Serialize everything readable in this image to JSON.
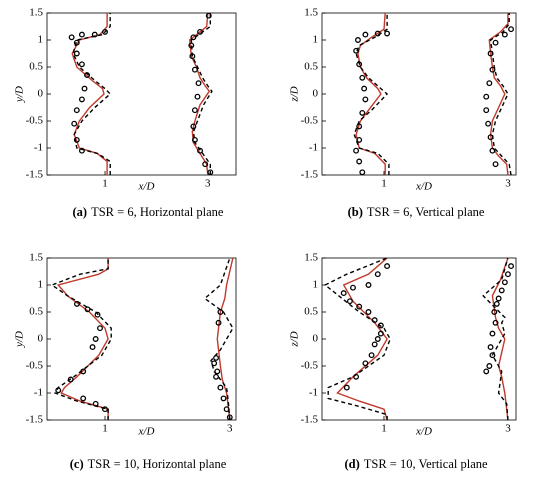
{
  "chart_data": [
    {
      "type": "line",
      "label": "(a)",
      "caption": "TSR = 6, Horizontal plane",
      "xlabel": "x/D",
      "ylabel": "y/D",
      "xlim": [
        -0.13,
        3.55
      ],
      "ylim": [
        -1.5,
        1.5
      ],
      "xticks": [
        1,
        3
      ],
      "yticks": [
        -1.5,
        -1,
        -0.5,
        0,
        0.5,
        1,
        1.5
      ],
      "series": [
        {
          "style": "solid",
          "color": "#c0392b",
          "x": [
            1.04,
            1.04,
            0.85,
            0.5,
            0.4,
            0.5,
            0.7,
            0.98,
            0.95,
            0.75,
            0.45,
            0.36,
            0.5,
            0.9,
            1.04,
            1.04
          ],
          "values": [
            -1.5,
            -1.25,
            -1.1,
            -1,
            -0.75,
            -0.5,
            -0.25,
            0,
            0.1,
            0.25,
            0.5,
            0.75,
            1,
            1.1,
            1.25,
            1.5
          ]
        },
        {
          "style": "dashed",
          "color": "#000000",
          "x": [
            1.1,
            1.1,
            0.85,
            0.45,
            0.4,
            0.55,
            0.8,
            1.1,
            1.0,
            0.8,
            0.5,
            0.38,
            0.45,
            0.95,
            1.1,
            1.1
          ],
          "values": [
            -1.5,
            -1.25,
            -1.1,
            -1,
            -0.75,
            -0.5,
            -0.25,
            0,
            0.1,
            0.25,
            0.5,
            0.75,
            1,
            1.1,
            1.25,
            1.5
          ]
        },
        {
          "style": "markers",
          "color": "#000000",
          "x": [
            0.55,
            0.45,
            0.4,
            0.45,
            0.55,
            0.6,
            0.65,
            0.55,
            0.45,
            0.45,
            0.35,
            0.55,
            0.8,
            1.0
          ],
          "values": [
            -1.05,
            -0.85,
            -0.55,
            -0.3,
            -0.1,
            0.1,
            0.35,
            0.55,
            0.75,
            0.95,
            1.05,
            1.1,
            1.1,
            1.15
          ]
        },
        {
          "style": "solid",
          "color": "#c0392b",
          "x": [
            3.0,
            2.98,
            2.85,
            2.72,
            2.7,
            2.75,
            2.85,
            3.03,
            2.95,
            2.85,
            2.78,
            2.68,
            2.65,
            2.85,
            2.98,
            3.0
          ],
          "values": [
            -1.5,
            -1.3,
            -1.1,
            -0.9,
            -0.7,
            -0.5,
            -0.2,
            0.05,
            0.15,
            0.3,
            0.5,
            0.7,
            1,
            1.15,
            1.25,
            1.5
          ]
        },
        {
          "style": "dashed",
          "color": "#000000",
          "x": [
            3.05,
            3.05,
            2.9,
            2.75,
            2.72,
            2.8,
            2.92,
            3.08,
            3.0,
            2.9,
            2.8,
            2.7,
            2.68,
            2.9,
            3.05,
            3.05
          ],
          "values": [
            -1.5,
            -1.3,
            -1.1,
            -0.9,
            -0.7,
            -0.5,
            -0.2,
            0.05,
            0.15,
            0.3,
            0.5,
            0.7,
            1,
            1.15,
            1.25,
            1.5
          ]
        },
        {
          "style": "markers",
          "color": "#000000",
          "x": [
            3.05,
            2.95,
            2.85,
            2.75,
            2.72,
            2.75,
            2.8,
            2.82,
            2.75,
            2.7,
            2.68,
            2.72,
            2.85,
            3.02
          ],
          "values": [
            -1.45,
            -1.3,
            -1.05,
            -0.85,
            -0.6,
            -0.3,
            -0.05,
            0.2,
            0.45,
            0.7,
            0.9,
            1.05,
            1.15,
            1.45
          ]
        }
      ]
    },
    {
      "type": "line",
      "label": "(b)",
      "caption": "TSR = 6, Vertical plane",
      "xlabel": "x/D",
      "ylabel": "z/D",
      "xlim": [
        0,
        3.13
      ],
      "ylim": [
        -1.5,
        1.5
      ],
      "xticks": [
        1,
        3
      ],
      "yticks": [
        -1.5,
        -1,
        -0.5,
        0,
        0.5,
        1,
        1.5
      ],
      "series": [
        {
          "style": "solid",
          "color": "#c0392b",
          "x": [
            1.02,
            1.02,
            0.85,
            0.6,
            0.55,
            0.62,
            0.75,
            0.95,
            0.9,
            0.72,
            0.62,
            0.58,
            0.62,
            0.8,
            1.0,
            1.02
          ],
          "values": [
            -1.5,
            -1.3,
            -1.1,
            -1,
            -0.75,
            -0.5,
            -0.3,
            0,
            0.1,
            0.3,
            0.5,
            0.75,
            0.9,
            1.05,
            1.2,
            1.5
          ]
        },
        {
          "style": "dashed",
          "color": "#000000",
          "x": [
            1.08,
            1.08,
            0.9,
            0.6,
            0.52,
            0.6,
            0.8,
            1.05,
            0.95,
            0.75,
            0.62,
            0.55,
            0.6,
            0.85,
            1.05,
            1.05
          ],
          "values": [
            -1.5,
            -1.3,
            -1.1,
            -1,
            -0.75,
            -0.5,
            -0.3,
            0,
            0.1,
            0.3,
            0.5,
            0.75,
            0.9,
            1.05,
            1.2,
            1.5
          ]
        },
        {
          "style": "markers",
          "color": "#000000",
          "x": [
            0.65,
            0.6,
            0.55,
            0.6,
            0.6,
            0.65,
            0.7,
            0.68,
            0.65,
            0.6,
            0.55,
            0.58,
            0.7,
            0.9,
            1.05
          ],
          "values": [
            -1.45,
            -1.25,
            -1.05,
            -0.85,
            -0.6,
            -0.35,
            -0.1,
            0.1,
            0.3,
            0.55,
            0.8,
            1.0,
            1.1,
            1.12,
            1.12
          ]
        },
        {
          "style": "solid",
          "color": "#c0392b",
          "x": [
            3.0,
            2.98,
            2.85,
            2.75,
            2.72,
            2.75,
            2.85,
            2.95,
            2.88,
            2.78,
            2.75,
            2.72,
            2.7,
            2.88,
            3.0,
            3.0
          ],
          "values": [
            -1.5,
            -1.3,
            -1.15,
            -1,
            -0.75,
            -0.5,
            -0.25,
            0,
            0.15,
            0.3,
            0.5,
            0.75,
            1,
            1.15,
            1.3,
            1.5
          ]
        },
        {
          "style": "dashed",
          "color": "#000000",
          "x": [
            3.05,
            3.02,
            2.9,
            2.78,
            2.75,
            2.8,
            2.9,
            3.0,
            2.92,
            2.82,
            2.78,
            2.75,
            2.72,
            2.92,
            3.02,
            3.02
          ],
          "values": [
            -1.5,
            -1.3,
            -1.15,
            -1,
            -0.75,
            -0.5,
            -0.25,
            0,
            0.15,
            0.3,
            0.5,
            0.75,
            1,
            1.15,
            1.3,
            1.5
          ]
        },
        {
          "style": "markers",
          "color": "#000000",
          "x": [
            2.8,
            2.75,
            2.72,
            2.68,
            2.65,
            2.65,
            2.7,
            2.75,
            2.72,
            2.8,
            2.95,
            3.05
          ],
          "values": [
            -1.3,
            -1.05,
            -0.8,
            -0.55,
            -0.3,
            -0.05,
            0.2,
            0.45,
            0.75,
            0.95,
            1.1,
            1.2
          ]
        }
      ]
    },
    {
      "type": "line",
      "label": "(c)",
      "caption": "TSR = 10, Horizontal plane",
      "xlabel": "x/D",
      "ylabel": "y/D",
      "xlim": [
        0.07,
        3.1
      ],
      "ylim": [
        -1.5,
        1.5
      ],
      "xticks": [
        1,
        3
      ],
      "yticks": [
        -1.5,
        -1,
        -0.5,
        0,
        0.5,
        1,
        1.5
      ],
      "series": [
        {
          "style": "solid",
          "color": "#c0392b",
          "x": [
            1.05,
            1.05,
            0.6,
            0.3,
            0.35,
            0.55,
            0.9,
            1.05,
            1.0,
            0.75,
            0.4,
            0.25,
            0.9,
            1.05,
            1.05
          ],
          "values": [
            -1.5,
            -1.3,
            -1.15,
            -1,
            -0.9,
            -0.7,
            -0.3,
            0,
            0.2,
            0.5,
            0.8,
            1.0,
            1.2,
            1.3,
            1.5
          ]
        },
        {
          "style": "dashed",
          "color": "#000000",
          "x": [
            1.05,
            1.05,
            0.55,
            0.2,
            0.25,
            0.5,
            0.95,
            1.1,
            1.1,
            0.85,
            0.4,
            0.15,
            0.6,
            1.05,
            1.05
          ],
          "values": [
            -1.5,
            -1.3,
            -1.15,
            -1,
            -0.9,
            -0.7,
            -0.3,
            0,
            0.2,
            0.5,
            0.8,
            1.0,
            1.2,
            1.3,
            1.5
          ]
        },
        {
          "style": "markers",
          "color": "#000000",
          "x": [
            0.55,
            0.72,
            0.88,
            0.92,
            0.85,
            0.8,
            0.65,
            0.45,
            0.25,
            0.65,
            0.85,
            1.0
          ],
          "values": [
            0.65,
            0.55,
            0.45,
            0.2,
            0,
            -0.15,
            -0.6,
            -0.75,
            -0.95,
            -1.1,
            -1.2,
            -1.3
          ]
        },
        {
          "style": "solid",
          "color": "#c0392b",
          "x": [
            3.0,
            2.95,
            2.88,
            2.85,
            2.8,
            2.85,
            2.92,
            2.95,
            3.05
          ],
          "values": [
            -1.5,
            -1.0,
            -0.75,
            -0.5,
            0,
            0.5,
            0.75,
            1.0,
            1.5
          ]
        },
        {
          "style": "dashed",
          "color": "#000000",
          "x": [
            3.0,
            2.98,
            2.95,
            2.75,
            2.7,
            2.85,
            2.95,
            3.05,
            2.9,
            2.6,
            2.85,
            3.0
          ],
          "values": [
            -1.5,
            -1.2,
            -0.9,
            -0.6,
            -0.4,
            -0.2,
            0,
            0.2,
            0.5,
            0.75,
            1.0,
            1.5
          ]
        },
        {
          "style": "markers",
          "color": "#000000",
          "x": [
            2.85,
            2.82,
            2.78,
            2.75,
            2.8,
            2.78,
            2.85,
            2.9,
            2.95,
            3.0
          ],
          "values": [
            0.5,
            0.3,
            -0.35,
            -0.45,
            -0.6,
            -0.7,
            -0.9,
            -1.1,
            -1.3,
            -1.45
          ]
        }
      ]
    },
    {
      "type": "line",
      "label": "(d)",
      "caption": "TSR = 10, Vertical plane",
      "xlabel": "x/D",
      "ylabel": "z/D",
      "xlim": [
        0,
        3.13
      ],
      "ylim": [
        -1.5,
        1.5
      ],
      "xticks": [
        1,
        3
      ],
      "yticks": [
        -1.5,
        -1,
        -0.5,
        0,
        0.5,
        1,
        1.5
      ],
      "series": [
        {
          "style": "solid",
          "color": "#c0392b",
          "x": [
            1.05,
            1.0,
            0.6,
            0.25,
            0.5,
            0.9,
            1.05,
            0.85,
            0.5,
            0.35,
            0.75,
            1.05
          ],
          "values": [
            -1.5,
            -1.3,
            -1.15,
            -1.0,
            -0.7,
            -0.3,
            0,
            0.3,
            0.7,
            1.0,
            1.2,
            1.5
          ]
        },
        {
          "style": "dashed",
          "color": "#000000",
          "x": [
            1.05,
            1.05,
            0.6,
            0.1,
            0.1,
            0.5,
            1.0,
            1.1,
            1.0,
            0.6,
            0.05,
            0.4,
            1.05
          ],
          "values": [
            -1.5,
            -1.4,
            -1.25,
            -1.1,
            -0.9,
            -0.7,
            -0.3,
            0,
            0.2,
            0.5,
            1.0,
            1.2,
            1.5
          ]
        },
        {
          "style": "markers",
          "color": "#000000",
          "x": [
            0.4,
            0.55,
            0.7,
            0.8,
            0.85,
            0.9,
            0.95,
            0.95,
            0.85,
            0.75,
            0.6,
            0.45,
            0.35,
            0.5,
            0.75,
            0.9,
            1.05
          ],
          "values": [
            -0.9,
            -0.7,
            -0.45,
            -0.3,
            -0.1,
            0,
            0.1,
            0.25,
            0.35,
            0.5,
            0.6,
            0.7,
            0.85,
            0.95,
            1.0,
            1.2,
            1.35
          ]
        },
        {
          "style": "solid",
          "color": "#c0392b",
          "x": [
            3.0,
            2.95,
            2.9,
            2.85,
            2.95,
            2.85,
            2.8,
            2.75,
            2.88,
            3.0
          ],
          "values": [
            -1.5,
            -1.0,
            -0.7,
            -0.5,
            0,
            0.2,
            0.4,
            0.8,
            1.1,
            1.5
          ]
        },
        {
          "style": "dashed",
          "color": "#000000",
          "x": [
            3.0,
            2.98,
            2.85,
            2.9,
            2.75,
            2.95,
            2.9,
            2.95,
            2.6,
            2.9,
            3.0
          ],
          "values": [
            -1.5,
            -1.2,
            -1.0,
            -0.6,
            -0.3,
            0.1,
            0.3,
            0.4,
            0.8,
            1.1,
            1.5
          ]
        },
        {
          "style": "markers",
          "color": "#000000",
          "x": [
            2.65,
            2.7,
            2.75,
            2.72,
            2.75,
            2.8,
            2.78,
            2.82,
            2.85,
            2.9,
            2.95,
            3.0,
            3.05
          ],
          "values": [
            -0.6,
            -0.5,
            -0.3,
            -0.15,
            0.1,
            0.3,
            0.5,
            0.65,
            0.75,
            0.9,
            1.05,
            1.2,
            1.35
          ]
        }
      ]
    }
  ]
}
